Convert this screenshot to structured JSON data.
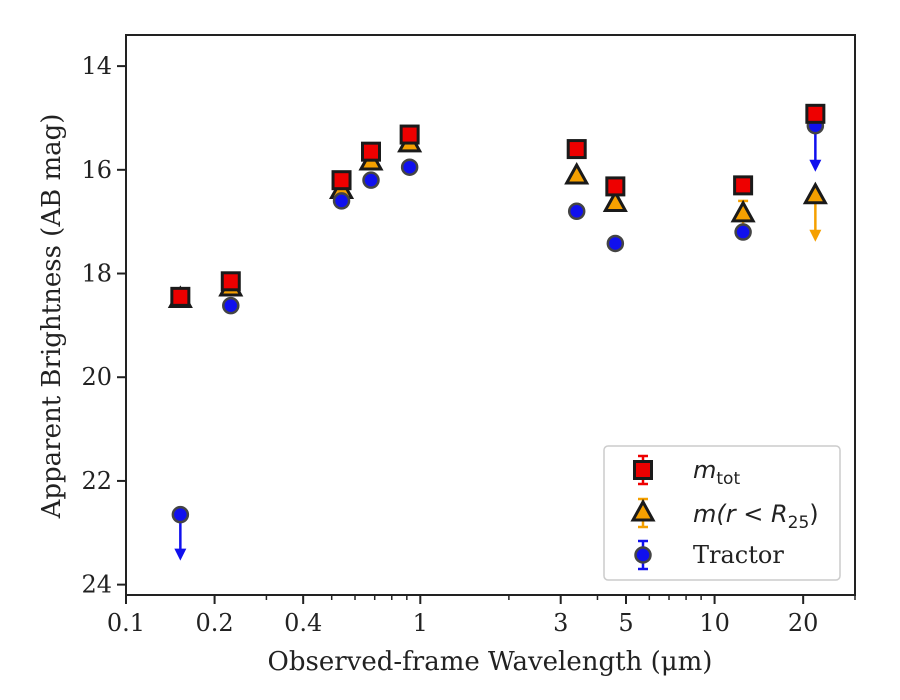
{
  "chart_data": {
    "type": "scatter",
    "xlabel": "Observed-frame Wavelength (μm)",
    "ylabel": "Apparent Brightness (AB mag)",
    "xscale": "log",
    "xlim": [
      0.1,
      30
    ],
    "ylim": [
      24.2,
      13.4
    ],
    "y_inverted": true,
    "x_ticks": [
      0.1,
      0.2,
      0.4,
      1,
      3,
      5,
      10,
      20
    ],
    "x_tick_labels": [
      "0.1",
      "0.2",
      "0.4",
      "1",
      "3",
      "5",
      "10",
      "20"
    ],
    "y_ticks": [
      14,
      16,
      18,
      20,
      22,
      24
    ],
    "y_tick_labels": [
      "14",
      "16",
      "18",
      "20",
      "22",
      "24"
    ],
    "grid": false,
    "legend_position": "lower-right",
    "series": [
      {
        "name_main": "m",
        "name_sub": "tot",
        "marker": "square",
        "color": "#ee0000",
        "edge_color": "#1a1a1a",
        "points": [
          {
            "x": 0.153,
            "y": 18.45
          },
          {
            "x": 0.227,
            "y": 18.15
          },
          {
            "x": 0.54,
            "y": 16.2
          },
          {
            "x": 0.68,
            "y": 15.65
          },
          {
            "x": 0.92,
            "y": 15.32
          },
          {
            "x": 3.4,
            "y": 15.6
          },
          {
            "x": 4.6,
            "y": 16.32
          },
          {
            "x": 12.5,
            "y": 16.3
          },
          {
            "x": 22.0,
            "y": 14.92
          }
        ]
      },
      {
        "name_main": "m(r < R",
        "name_sub": "25",
        "name_tail": ")",
        "marker": "triangle",
        "color": "#f5a000",
        "edge_color": "#1a1a1a",
        "points": [
          {
            "x": 0.153,
            "y": 18.5
          },
          {
            "x": 0.227,
            "y": 18.28
          },
          {
            "x": 0.54,
            "y": 16.4
          },
          {
            "x": 0.68,
            "y": 15.85
          },
          {
            "x": 0.92,
            "y": 15.5
          },
          {
            "x": 3.4,
            "y": 16.12
          },
          {
            "x": 4.6,
            "y": 16.65
          },
          {
            "x": 12.5,
            "y": 16.85,
            "err": 0.25
          },
          {
            "x": 22.0,
            "y": 16.5,
            "upper_limit": true
          }
        ]
      },
      {
        "name": "Tractor",
        "marker": "circle",
        "color": "#1010ee",
        "edge_color": "#444444",
        "points": [
          {
            "x": 0.153,
            "y": 22.65,
            "upper_limit": true
          },
          {
            "x": 0.227,
            "y": 18.62
          },
          {
            "x": 0.54,
            "y": 16.6
          },
          {
            "x": 0.68,
            "y": 16.2
          },
          {
            "x": 0.92,
            "y": 15.95
          },
          {
            "x": 3.4,
            "y": 16.8
          },
          {
            "x": 4.6,
            "y": 17.42
          },
          {
            "x": 12.5,
            "y": 17.2
          },
          {
            "x": 22.0,
            "y": 15.15,
            "upper_limit": true
          }
        ]
      }
    ]
  }
}
